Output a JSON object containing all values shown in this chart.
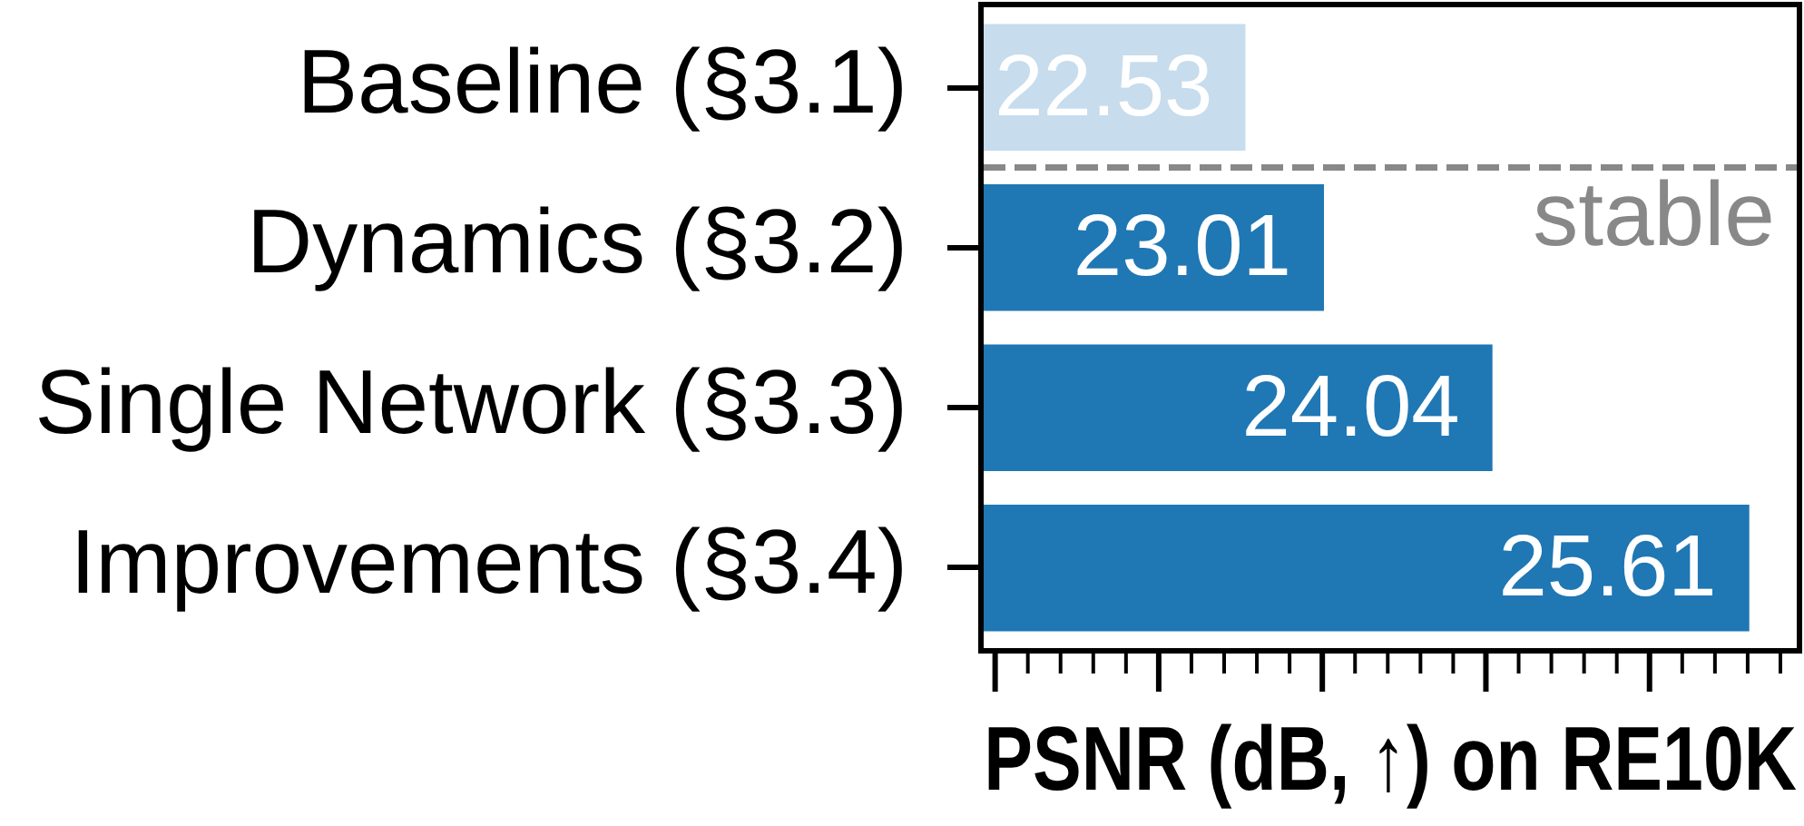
{
  "chart_data": {
    "type": "bar",
    "orientation": "horizontal",
    "categories": [
      "Baseline (§3.1)",
      "Dynamics (§3.2)",
      "Single Network (§3.3)",
      "Improvements (§3.4)"
    ],
    "values": [
      22.53,
      23.01,
      24.04,
      25.61
    ],
    "colors": [
      "#c7dcec",
      "#1f77b4",
      "#1f77b4",
      "#1f77b4"
    ],
    "xlabel": "PSNR (dB, ↑) on RE10K",
    "xlim": [
      20.93,
      25.9
    ],
    "tick_labels": "y",
    "data_labels": true,
    "annotations": [
      "stable"
    ]
  }
}
